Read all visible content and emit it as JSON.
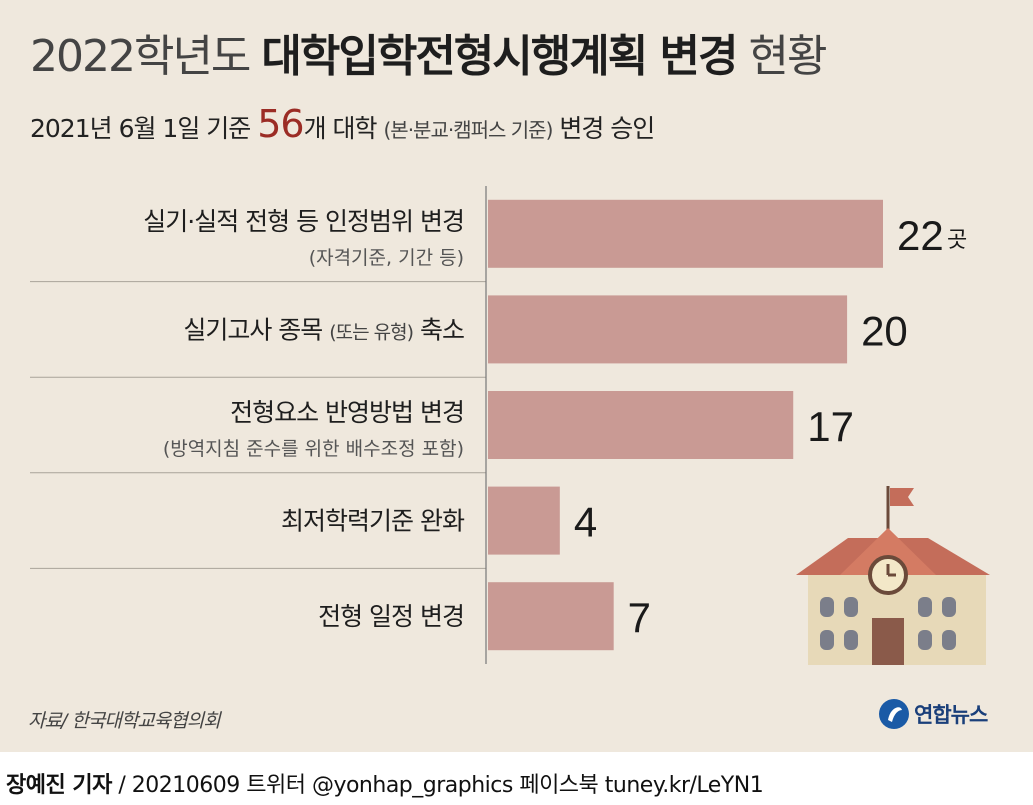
{
  "title": {
    "year": "2022학년도 ",
    "bold": "대학입학전형시행계획 변경",
    "tail": " 현황"
  },
  "subtitle": {
    "prefix": "2021년 6월 1일 기준 ",
    "number": "56",
    "middle": "개 대학 ",
    "small": "(본·분교·캠퍼스 기준)",
    "suffix": " 변경 승인"
  },
  "chart_data": {
    "type": "bar",
    "orientation": "horizontal",
    "categories": [
      "실기·실적 전형 등 인정범위 변경",
      "실기고사 종목 축소",
      "전형요소 반영방법 변경",
      "최저학력기준 완화",
      "전형 일정 변경"
    ],
    "category_labels": [
      {
        "main": "실기·실적 전형 등 인정범위 변경",
        "sub": "(자격기준, 기간 등)"
      },
      {
        "main": "실기고사 종목 ",
        "mid": "(또는 유형)",
        "tail": " 축소"
      },
      {
        "main": "전형요소 반영방법 변경",
        "sub": "(방역지침 준수를 위한 배수조정 포함)"
      },
      {
        "main": "최저학력기준 완화"
      },
      {
        "main": "전형 일정 변경"
      }
    ],
    "values": [
      22,
      20,
      17,
      4,
      7
    ],
    "value_labels": [
      "22",
      "20",
      "17",
      "4",
      "7"
    ],
    "unit": "곳",
    "bar_color": "#c99a94",
    "xlim": [
      0,
      22
    ]
  },
  "footer": {
    "source": "자료/ 한국대학교육협의회",
    "logo": "연합뉴스",
    "credit_reporter": "장예진 기자",
    "credit_rest": " / 20210609 트위터 @yonhap_graphics  페이스북 tuney.kr/LeYN1"
  },
  "colors": {
    "background": "#efe8dd",
    "accent": "#9b2c25",
    "bar": "#c99a94"
  },
  "icons": [
    "school-building-icon",
    "yonhap-logo-icon"
  ]
}
